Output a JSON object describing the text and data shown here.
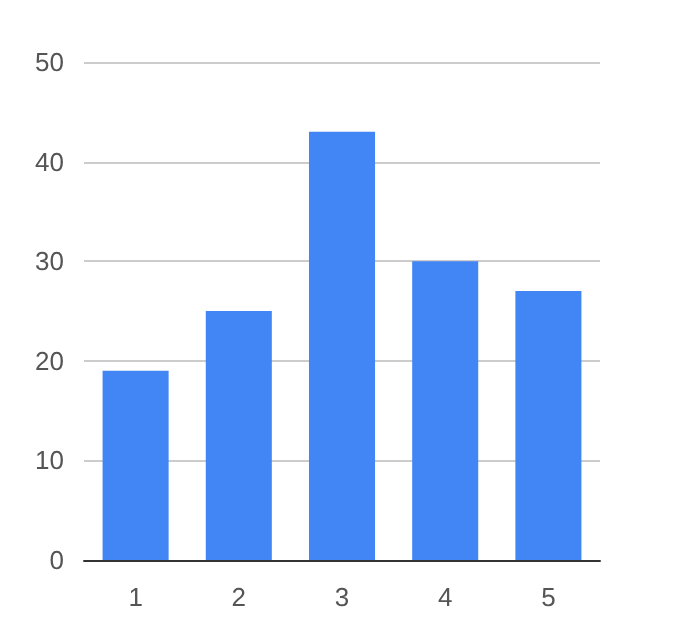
{
  "chart_data": {
    "type": "bar",
    "categories": [
      "1",
      "2",
      "3",
      "4",
      "5"
    ],
    "values": [
      19,
      25,
      43,
      30,
      27
    ],
    "color": "#4285f4",
    "ylim": [
      0,
      50
    ],
    "yticks": [
      0,
      10,
      20,
      30,
      40,
      50
    ],
    "grid": "y"
  }
}
